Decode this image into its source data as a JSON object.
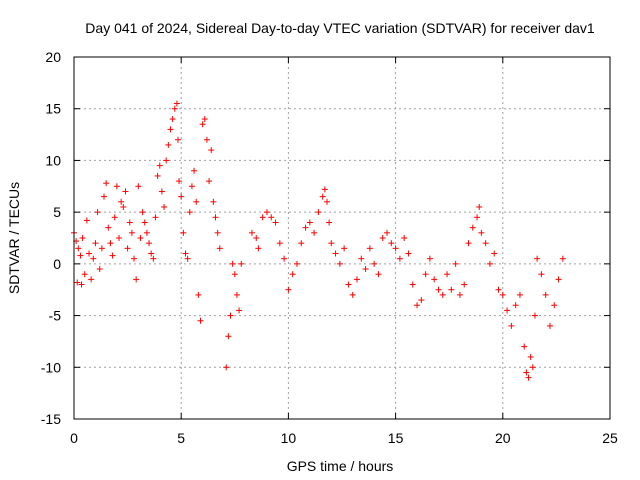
{
  "chart_data": {
    "type": "scatter",
    "title": "Day 041 of 2024, Sidereal Day-to-day VTEC variation (SDTVAR) for receiver dav1",
    "xlabel": "GPS time / hours",
    "ylabel": "SDTVAR / TECUs",
    "xlim": [
      0,
      25
    ],
    "ylim": [
      -15,
      20
    ],
    "xticks": [
      0,
      5,
      10,
      15,
      20,
      25
    ],
    "yticks": [
      -15,
      -10,
      -5,
      0,
      5,
      10,
      15,
      20
    ],
    "grid": true,
    "marker": "+",
    "marker_color": "#ff0000",
    "series": [
      {
        "name": "SDTVAR",
        "color": "#ff0000",
        "points": [
          [
            0.0,
            3.0
          ],
          [
            0.1,
            2.2
          ],
          [
            0.15,
            -1.8
          ],
          [
            0.2,
            1.5
          ],
          [
            0.3,
            0.8
          ],
          [
            0.35,
            -2.0
          ],
          [
            0.4,
            2.5
          ],
          [
            0.5,
            -1.0
          ],
          [
            0.6,
            4.2
          ],
          [
            0.7,
            1.0
          ],
          [
            0.8,
            -1.5
          ],
          [
            0.9,
            0.5
          ],
          [
            1.0,
            2.0
          ],
          [
            1.1,
            5.0
          ],
          [
            1.2,
            -0.5
          ],
          [
            1.3,
            1.5
          ],
          [
            1.4,
            6.5
          ],
          [
            1.5,
            7.8
          ],
          [
            1.6,
            3.5
          ],
          [
            1.7,
            2.0
          ],
          [
            1.8,
            0.8
          ],
          [
            1.9,
            4.5
          ],
          [
            2.0,
            7.5
          ],
          [
            2.1,
            2.5
          ],
          [
            2.2,
            6.0
          ],
          [
            2.3,
            5.5
          ],
          [
            2.4,
            7.0
          ],
          [
            2.5,
            1.5
          ],
          [
            2.6,
            4.0
          ],
          [
            2.7,
            3.0
          ],
          [
            2.8,
            0.5
          ],
          [
            2.9,
            -1.5
          ],
          [
            3.0,
            7.5
          ],
          [
            3.1,
            2.5
          ],
          [
            3.2,
            5.0
          ],
          [
            3.3,
            4.0
          ],
          [
            3.4,
            3.0
          ],
          [
            3.5,
            2.0
          ],
          [
            3.6,
            1.0
          ],
          [
            3.7,
            0.5
          ],
          [
            3.8,
            4.5
          ],
          [
            3.9,
            8.5
          ],
          [
            4.0,
            9.5
          ],
          [
            4.1,
            7.0
          ],
          [
            4.2,
            5.5
          ],
          [
            4.3,
            10.0
          ],
          [
            4.4,
            11.5
          ],
          [
            4.5,
            13.0
          ],
          [
            4.6,
            14.0
          ],
          [
            4.7,
            15.0
          ],
          [
            4.8,
            15.5
          ],
          [
            4.85,
            12.0
          ],
          [
            4.9,
            8.0
          ],
          [
            5.0,
            6.5
          ],
          [
            5.1,
            3.0
          ],
          [
            5.2,
            1.0
          ],
          [
            5.3,
            0.5
          ],
          [
            5.4,
            5.0
          ],
          [
            5.5,
            7.5
          ],
          [
            5.6,
            9.0
          ],
          [
            5.7,
            6.0
          ],
          [
            5.8,
            -3.0
          ],
          [
            5.9,
            -5.5
          ],
          [
            6.0,
            13.5
          ],
          [
            6.1,
            14.0
          ],
          [
            6.2,
            12.0
          ],
          [
            6.3,
            8.0
          ],
          [
            6.4,
            11.0
          ],
          [
            6.5,
            6.0
          ],
          [
            6.6,
            4.5
          ],
          [
            6.7,
            3.0
          ],
          [
            6.8,
            1.5
          ],
          [
            7.1,
            -10.0
          ],
          [
            7.2,
            -7.0
          ],
          [
            7.3,
            -5.0
          ],
          [
            7.4,
            0.0
          ],
          [
            7.5,
            -1.0
          ],
          [
            7.6,
            -3.0
          ],
          [
            7.7,
            -4.5
          ],
          [
            7.8,
            0.0
          ],
          [
            8.3,
            3.0
          ],
          [
            8.5,
            2.5
          ],
          [
            8.6,
            1.5
          ],
          [
            8.8,
            4.5
          ],
          [
            9.0,
            5.0
          ],
          [
            9.2,
            4.5
          ],
          [
            9.4,
            4.0
          ],
          [
            9.6,
            2.0
          ],
          [
            9.8,
            0.5
          ],
          [
            10.0,
            -2.5
          ],
          [
            10.2,
            -1.0
          ],
          [
            10.4,
            0.0
          ],
          [
            10.6,
            2.0
          ],
          [
            10.8,
            3.5
          ],
          [
            11.0,
            4.0
          ],
          [
            11.2,
            3.0
          ],
          [
            11.4,
            5.0
          ],
          [
            11.6,
            6.5
          ],
          [
            11.7,
            7.2
          ],
          [
            11.8,
            6.0
          ],
          [
            11.9,
            4.0
          ],
          [
            12.0,
            2.0
          ],
          [
            12.2,
            1.0
          ],
          [
            12.4,
            0.0
          ],
          [
            12.6,
            1.5
          ],
          [
            12.8,
            -2.0
          ],
          [
            13.0,
            -3.0
          ],
          [
            13.2,
            -1.5
          ],
          [
            13.4,
            0.5
          ],
          [
            13.6,
            -0.5
          ],
          [
            13.8,
            1.5
          ],
          [
            14.0,
            0.0
          ],
          [
            14.2,
            -1.0
          ],
          [
            14.4,
            2.5
          ],
          [
            14.6,
            3.0
          ],
          [
            14.8,
            2.0
          ],
          [
            15.0,
            1.5
          ],
          [
            15.2,
            0.5
          ],
          [
            15.4,
            2.5
          ],
          [
            15.6,
            1.0
          ],
          [
            15.8,
            -2.0
          ],
          [
            16.0,
            -4.0
          ],
          [
            16.2,
            -3.5
          ],
          [
            16.4,
            -1.0
          ],
          [
            16.6,
            0.5
          ],
          [
            16.8,
            -1.5
          ],
          [
            17.0,
            -2.5
          ],
          [
            17.2,
            -3.0
          ],
          [
            17.4,
            -1.0
          ],
          [
            17.6,
            -2.5
          ],
          [
            17.8,
            0.0
          ],
          [
            18.0,
            -3.0
          ],
          [
            18.2,
            -2.0
          ],
          [
            18.4,
            2.0
          ],
          [
            18.6,
            3.5
          ],
          [
            18.8,
            4.5
          ],
          [
            18.9,
            5.5
          ],
          [
            19.0,
            3.0
          ],
          [
            19.2,
            2.0
          ],
          [
            19.4,
            0.0
          ],
          [
            19.6,
            1.0
          ],
          [
            19.8,
            -2.5
          ],
          [
            20.0,
            -3.0
          ],
          [
            20.2,
            -4.5
          ],
          [
            20.4,
            -6.0
          ],
          [
            20.6,
            -4.0
          ],
          [
            20.8,
            -3.0
          ],
          [
            21.0,
            -8.0
          ],
          [
            21.1,
            -10.5
          ],
          [
            21.2,
            -11.0
          ],
          [
            21.3,
            -9.0
          ],
          [
            21.4,
            -10.0
          ],
          [
            21.5,
            -5.0
          ],
          [
            21.6,
            0.5
          ],
          [
            21.8,
            -1.0
          ],
          [
            22.0,
            -3.0
          ],
          [
            22.2,
            -6.0
          ],
          [
            22.4,
            -4.0
          ],
          [
            22.6,
            -1.5
          ],
          [
            22.8,
            0.5
          ]
        ]
      }
    ]
  }
}
